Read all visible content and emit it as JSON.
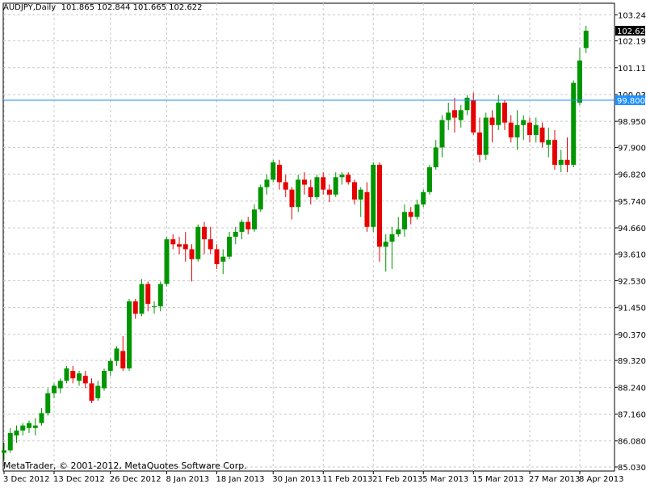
{
  "header": {
    "symbol": "AUDJPY,Daily",
    "ohlc": "101.865 102.844 101.665 102.622"
  },
  "footer": {
    "copyright": "MetaTrader, © 2001-2012, MetaQuotes Software Corp."
  },
  "colors": {
    "up": "#009600",
    "down": "#e60000",
    "grid": "#c8c8c8",
    "hline": "#1e90ff",
    "label_bg": "#000000",
    "label_fg": "#ffffff",
    "hline_label_bg": "#1e90ff"
  },
  "chart_data": {
    "type": "candlestick",
    "title": "",
    "xlabel": "",
    "ylabel": "",
    "ylim": [
      85.03,
      103.25
    ],
    "y_ticks": [
      "103.240",
      "102.190",
      "101.110",
      "100.030",
      "98.950",
      "97.900",
      "96.820",
      "95.740",
      "94.660",
      "93.610",
      "92.530",
      "91.450",
      "90.370",
      "89.320",
      "88.240",
      "87.160",
      "86.080",
      "85.030"
    ],
    "x_tick_labels": [
      "3 Dec 2012",
      "13 Dec 2012",
      "26 Dec 2012",
      "8 Jan 2013",
      "18 Jan 2013",
      "30 Jan 2013",
      "11 Feb 2013",
      "21 Feb 2013",
      "5 Mar 2013",
      "15 Mar 2013",
      "27 Mar 2013",
      "8 Apr 2013"
    ],
    "x_tick_bar_index": [
      0,
      8,
      17,
      26,
      34,
      43,
      51,
      59,
      67,
      75,
      84,
      92
    ],
    "current_price_label": "102.622",
    "horizontal_line": {
      "value": 99.8,
      "label": "99.800"
    },
    "candles": [
      [
        85.6,
        86.0,
        85.3,
        85.7
      ],
      [
        85.7,
        86.6,
        85.6,
        86.4
      ],
      [
        86.3,
        86.7,
        86.0,
        86.5
      ],
      [
        86.5,
        86.8,
        86.3,
        86.7
      ],
      [
        86.6,
        86.9,
        86.4,
        86.8
      ],
      [
        86.6,
        87.0,
        86.3,
        86.7
      ],
      [
        86.8,
        87.4,
        86.7,
        87.2
      ],
      [
        87.2,
        88.2,
        87.1,
        88.0
      ],
      [
        88.0,
        88.4,
        87.8,
        88.3
      ],
      [
        88.2,
        88.6,
        88.0,
        88.5
      ],
      [
        88.5,
        89.1,
        88.4,
        89.0
      ],
      [
        88.9,
        89.1,
        88.4,
        88.6
      ],
      [
        88.5,
        88.9,
        88.3,
        88.8
      ],
      [
        88.7,
        88.9,
        88.2,
        88.4
      ],
      [
        88.4,
        88.6,
        87.6,
        87.7
      ],
      [
        87.8,
        88.5,
        87.7,
        88.3
      ],
      [
        88.2,
        89.0,
        88.1,
        88.9
      ],
      [
        88.9,
        89.4,
        88.7,
        89.3
      ],
      [
        89.3,
        89.9,
        89.1,
        89.8
      ],
      [
        89.7,
        90.3,
        88.9,
        89.0
      ],
      [
        89.0,
        91.8,
        88.9,
        91.7
      ],
      [
        91.7,
        91.8,
        91.0,
        91.2
      ],
      [
        91.2,
        92.6,
        91.1,
        92.4
      ],
      [
        92.4,
        92.5,
        91.3,
        91.6
      ],
      [
        91.5,
        91.7,
        91.2,
        91.5
      ],
      [
        91.5,
        92.5,
        91.3,
        92.4
      ],
      [
        92.4,
        94.3,
        92.3,
        94.2
      ],
      [
        94.2,
        94.4,
        93.8,
        94.0
      ],
      [
        94.0,
        94.3,
        93.6,
        93.9
      ],
      [
        94.0,
        94.5,
        93.3,
        93.8
      ],
      [
        93.8,
        94.0,
        92.5,
        93.4
      ],
      [
        93.4,
        94.8,
        93.3,
        94.7
      ],
      [
        94.7,
        94.9,
        93.6,
        94.2
      ],
      [
        94.2,
        94.7,
        93.6,
        93.8
      ],
      [
        93.8,
        94.0,
        93.0,
        93.2
      ],
      [
        93.3,
        93.8,
        92.8,
        93.5
      ],
      [
        93.5,
        94.5,
        93.4,
        94.3
      ],
      [
        94.3,
        94.7,
        94.0,
        94.5
      ],
      [
        94.5,
        95.0,
        94.2,
        94.9
      ],
      [
        94.9,
        95.1,
        94.4,
        94.6
      ],
      [
        94.6,
        95.6,
        94.5,
        95.4
      ],
      [
        95.4,
        96.4,
        95.3,
        96.3
      ],
      [
        96.3,
        96.8,
        96.0,
        96.6
      ],
      [
        96.6,
        97.4,
        96.5,
        97.3
      ],
      [
        97.2,
        97.4,
        96.2,
        96.5
      ],
      [
        96.5,
        96.8,
        95.9,
        96.2
      ],
      [
        96.2,
        96.3,
        95.0,
        95.5
      ],
      [
        95.5,
        96.8,
        95.3,
        96.6
      ],
      [
        96.6,
        96.9,
        96.0,
        96.4
      ],
      [
        96.3,
        96.6,
        95.6,
        95.9
      ],
      [
        95.9,
        96.8,
        95.8,
        96.7
      ],
      [
        96.7,
        96.9,
        96.0,
        96.2
      ],
      [
        96.2,
        96.4,
        95.7,
        96.0
      ],
      [
        96.0,
        96.9,
        95.9,
        96.7
      ],
      [
        96.7,
        96.9,
        96.4,
        96.8
      ],
      [
        96.8,
        96.9,
        96.4,
        96.5
      ],
      [
        96.5,
        96.6,
        95.6,
        95.8
      ],
      [
        95.8,
        96.3,
        95.1,
        96.2
      ],
      [
        96.1,
        96.5,
        94.5,
        94.7
      ],
      [
        94.7,
        97.3,
        94.5,
        97.2
      ],
      [
        97.2,
        97.3,
        93.3,
        93.9
      ],
      [
        93.9,
        94.4,
        92.9,
        94.1
      ],
      [
        94.1,
        94.7,
        93.0,
        94.4
      ],
      [
        94.4,
        95.1,
        94.3,
        94.6
      ],
      [
        94.6,
        95.6,
        94.3,
        95.3
      ],
      [
        95.3,
        95.5,
        94.8,
        95.1
      ],
      [
        95.1,
        95.8,
        95.0,
        95.6
      ],
      [
        95.6,
        96.2,
        95.5,
        96.1
      ],
      [
        96.1,
        97.2,
        96.0,
        97.1
      ],
      [
        97.1,
        98.2,
        97.0,
        97.9
      ],
      [
        97.9,
        99.2,
        97.5,
        99.0
      ],
      [
        99.0,
        99.7,
        98.6,
        99.3
      ],
      [
        99.4,
        99.9,
        98.5,
        99.1
      ],
      [
        99.0,
        99.6,
        98.7,
        99.4
      ],
      [
        99.4,
        100.0,
        99.2,
        99.9
      ],
      [
        99.8,
        100.1,
        98.4,
        98.5
      ],
      [
        98.5,
        99.1,
        97.3,
        97.6
      ],
      [
        97.6,
        99.3,
        97.4,
        99.1
      ],
      [
        99.1,
        99.4,
        98.1,
        98.8
      ],
      [
        98.8,
        100.0,
        98.6,
        99.7
      ],
      [
        99.7,
        99.8,
        98.6,
        98.9
      ],
      [
        98.9,
        99.2,
        98.1,
        98.3
      ],
      [
        98.3,
        99.4,
        97.8,
        98.8
      ],
      [
        98.8,
        99.2,
        98.2,
        99.0
      ],
      [
        98.9,
        99.1,
        98.1,
        98.4
      ],
      [
        98.4,
        99.1,
        98.1,
        98.8
      ],
      [
        98.7,
        98.9,
        97.9,
        98.1
      ],
      [
        98.0,
        98.7,
        97.5,
        98.2
      ],
      [
        98.2,
        98.6,
        97.0,
        97.2
      ],
      [
        97.2,
        97.8,
        96.9,
        97.4
      ],
      [
        97.4,
        98.3,
        96.9,
        97.2
      ],
      [
        97.2,
        100.6,
        97.1,
        100.5
      ],
      [
        99.7,
        101.9,
        99.6,
        101.4
      ],
      [
        101.9,
        102.8,
        101.7,
        102.6
      ]
    ]
  }
}
